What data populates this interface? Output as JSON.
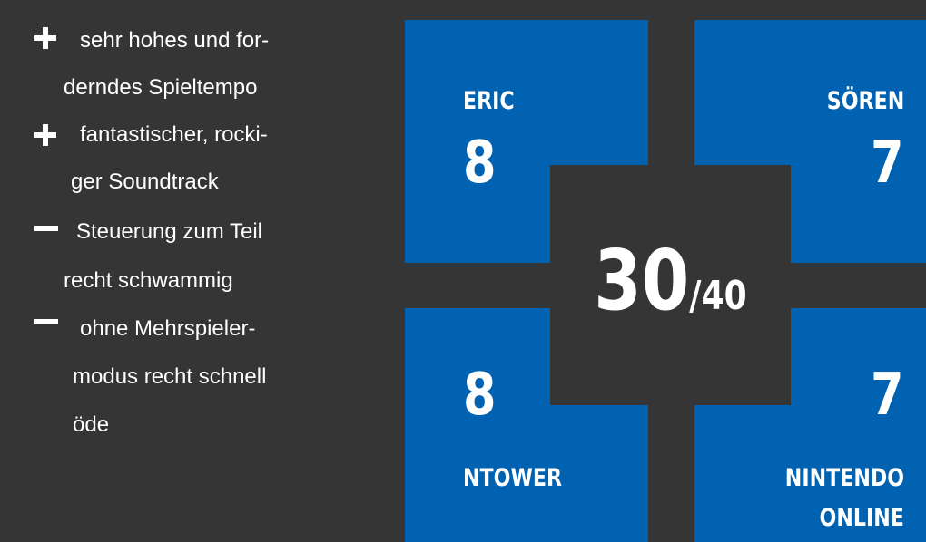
{
  "review_points": [
    {
      "type": "plus",
      "icon": "plus-icon",
      "lines": [
        "sehr hohes und for-",
        "derndes Spieltempo"
      ]
    },
    {
      "type": "plus",
      "icon": "plus-icon",
      "lines": [
        "fantastischer, rocki-",
        "ger Soundtrack"
      ]
    },
    {
      "type": "minus",
      "icon": "minus-icon",
      "lines": [
        "Steuerung zum Teil",
        "recht schwammig"
      ]
    },
    {
      "type": "minus",
      "icon": "minus-icon",
      "lines": [
        "ohne Mehrspieler-",
        "modus recht schnell",
        "öde"
      ]
    }
  ],
  "ratings": [
    {
      "name": "ERIC",
      "score": "8"
    },
    {
      "name": "SÖREN",
      "score": "7"
    },
    {
      "name": "NTOWER",
      "score": "8"
    },
    {
      "name_lines": [
        "NINTENDO",
        "ONLINE"
      ],
      "score": "7"
    }
  ],
  "total": {
    "score": "30",
    "max": "/40"
  },
  "colors": {
    "background": "#353535",
    "tile": "#0062b0",
    "text": "#ffffff"
  }
}
